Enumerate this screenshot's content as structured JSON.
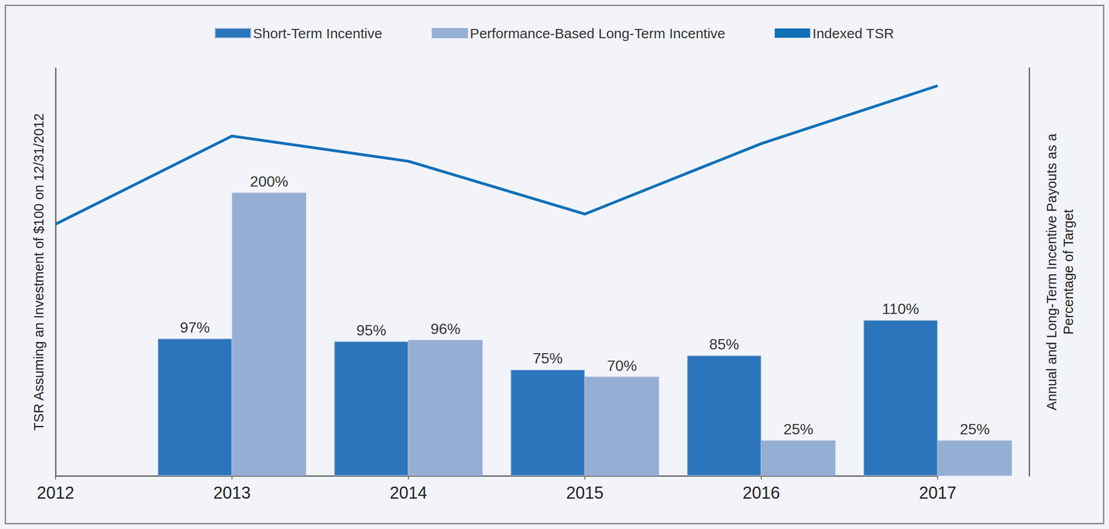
{
  "chart_data": {
    "type": "bar",
    "categories": [
      "2012",
      "2013",
      "2014",
      "2015",
      "2016",
      "2017"
    ],
    "ylabel": "TSR Assuming an Investment of $100 on 12/31/2012",
    "y2label": "Annual and Long-Term Incentive Payouts as a\nPercentage of Target",
    "ylim": [
      0,
      162
    ],
    "y2lim": [
      0,
      288
    ],
    "tick_labels": "x",
    "grid": false,
    "legend": "top",
    "data_labels": true,
    "series": [
      {
        "name": "Short-Term Incentive",
        "type": "bar",
        "axis": "y2",
        "color": "#2a75bb",
        "values": [
          null,
          97,
          95,
          75,
          85,
          110
        ],
        "value_labels": [
          null,
          "97%",
          "95%",
          "75%",
          "85%",
          "110%"
        ]
      },
      {
        "name": "Performance-Based Long-Term Incentive",
        "type": "bar",
        "axis": "y2",
        "color": "#95aed4",
        "values": [
          null,
          200,
          96,
          70,
          25,
          25
        ],
        "value_labels": [
          null,
          "200%",
          "96%",
          "70%",
          "25%",
          "25%"
        ]
      },
      {
        "name": "Indexed TSR",
        "type": "line",
        "color": "#1071b8",
        "values": [
          100,
          135,
          125,
          104,
          132,
          155
        ]
      }
    ]
  }
}
